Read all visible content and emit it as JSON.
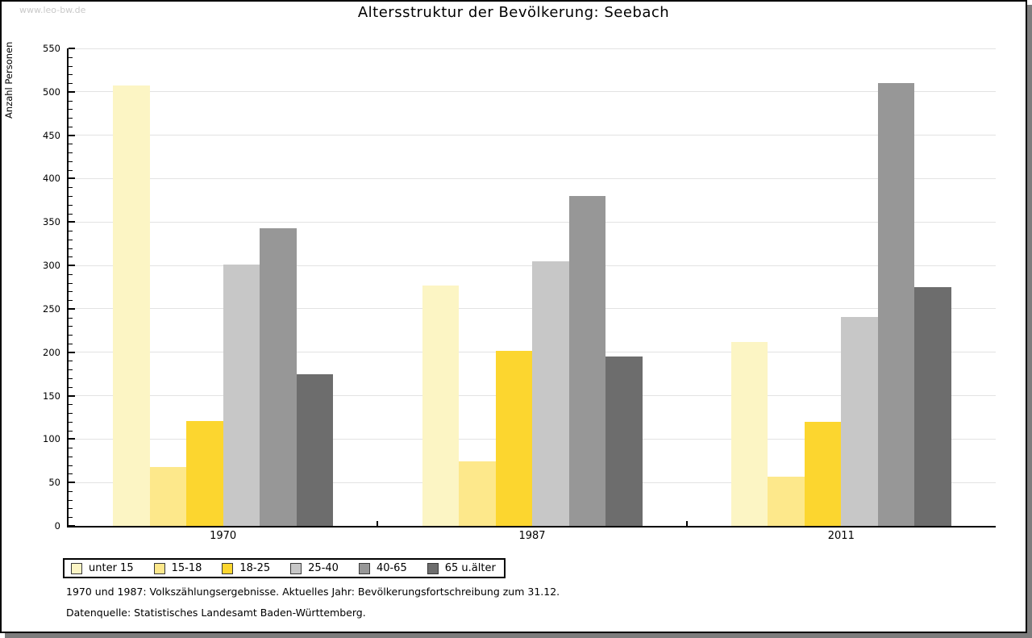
{
  "watermark": "www.leo-bw.de",
  "footnotes": {
    "line1": "1970 und 1987: Volkszählungsergebnisse. Aktuelles Jahr: Bevölkerungsfortschreibung zum 31.12.",
    "line2": "Datenquelle: Statistisches Landesamt Baden-Württemberg."
  },
  "colors": {
    "gridline": "#e3e3e3",
    "axis": "#000000",
    "watermark": "#c9c9c9",
    "panel_shadow": "#7d7d7d"
  },
  "chart_data": {
    "type": "bar",
    "title": "Altersstruktur der Bevölkerung: Seebach",
    "ylabel": "Anzahl Personen",
    "xlabel": "",
    "categories": [
      "1970",
      "1987",
      "2011"
    ],
    "series": [
      {
        "name": "unter 15",
        "color": "#fcf5c4",
        "values": [
          507,
          277,
          212
        ]
      },
      {
        "name": "15-18",
        "color": "#fde88b",
        "values": [
          68,
          74,
          57
        ]
      },
      {
        "name": "18-25",
        "color": "#fcd62f",
        "values": [
          121,
          202,
          120
        ]
      },
      {
        "name": "25-40",
        "color": "#c7c7c7",
        "values": [
          301,
          305,
          241
        ]
      },
      {
        "name": "40-65",
        "color": "#979797",
        "values": [
          343,
          380,
          510
        ]
      },
      {
        "name": "65 u.älter",
        "color": "#6d6d6d",
        "values": [
          175,
          195,
          275
        ]
      }
    ],
    "ylim": [
      0,
      550
    ],
    "ytick_interval": 50,
    "minor_tick_interval": 10,
    "grid": true,
    "legend_position": "bottom"
  }
}
